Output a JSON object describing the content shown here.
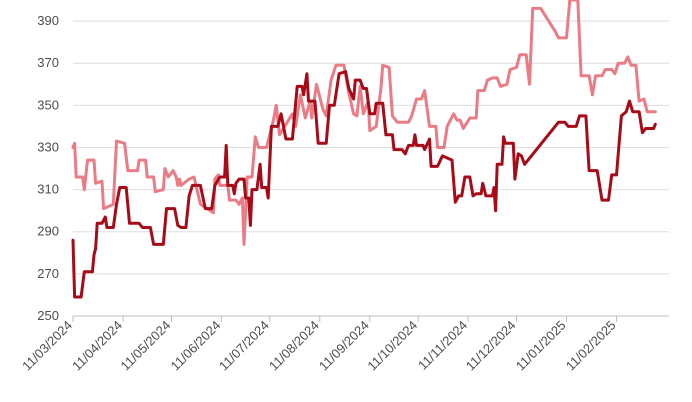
{
  "chart_data": {
    "type": "line",
    "title": "",
    "xlabel": "",
    "ylabel": "",
    "x_range": [
      "2024-03-11",
      "2025-03-01"
    ],
    "ylim": [
      250,
      400
    ],
    "yticks": [
      250,
      270,
      290,
      310,
      330,
      350,
      370,
      390
    ],
    "xticks": [
      "11/03/2024",
      "11/04/2024",
      "11/05/2024",
      "11/06/2024",
      "11/07/2024",
      "11/08/2024",
      "11/09/2024",
      "11/10/2024",
      "11/11/2024",
      "11/12/2024",
      "11/01/2025",
      "11/02/2025"
    ],
    "grid": "horizontal",
    "legend": "none",
    "series": [
      {
        "color": "#eb7b85",
        "points": [
          [
            "2024-03-11",
            330
          ],
          [
            "2024-03-12",
            332
          ],
          [
            "2024-03-13",
            316
          ],
          [
            "2024-03-17",
            316
          ],
          [
            "2024-03-18",
            310
          ],
          [
            "2024-03-20",
            324
          ],
          [
            "2024-03-24",
            324
          ],
          [
            "2024-03-25",
            313
          ],
          [
            "2024-03-29",
            314
          ],
          [
            "2024-03-30",
            301
          ],
          [
            "2024-04-05",
            303
          ],
          [
            "2024-04-07",
            333
          ],
          [
            "2024-04-12",
            332
          ],
          [
            "2024-04-14",
            319
          ],
          [
            "2024-04-20",
            319
          ],
          [
            "2024-04-21",
            324
          ],
          [
            "2024-04-25",
            324
          ],
          [
            "2024-04-26",
            316
          ],
          [
            "2024-04-30",
            316
          ],
          [
            "2024-05-01",
            309
          ],
          [
            "2024-05-06",
            310
          ],
          [
            "2024-05-07",
            320
          ],
          [
            "2024-05-09",
            316
          ],
          [
            "2024-05-12",
            319
          ],
          [
            "2024-05-14",
            316
          ],
          [
            "2024-05-15",
            312
          ],
          [
            "2024-05-16",
            315
          ],
          [
            "2024-05-17",
            312
          ],
          [
            "2024-05-22",
            315
          ],
          [
            "2024-05-25",
            316
          ],
          [
            "2024-05-29",
            303
          ],
          [
            "2024-06-06",
            299
          ],
          [
            "2024-06-07",
            315
          ],
          [
            "2024-06-09",
            317
          ],
          [
            "2024-06-10",
            312
          ],
          [
            "2024-06-15",
            312
          ],
          [
            "2024-06-16",
            305
          ],
          [
            "2024-06-20",
            305
          ],
          [
            "2024-06-22",
            303
          ],
          [
            "2024-06-24",
            306
          ],
          [
            "2024-06-25",
            284
          ],
          [
            "2024-06-27",
            316
          ],
          [
            "2024-06-30",
            316
          ],
          [
            "2024-07-02",
            335
          ],
          [
            "2024-07-04",
            330
          ],
          [
            "2024-07-09",
            330
          ],
          [
            "2024-07-13",
            342
          ],
          [
            "2024-07-15",
            350
          ],
          [
            "2024-07-17",
            336
          ],
          [
            "2024-07-25",
            346
          ],
          [
            "2024-07-27",
            340
          ],
          [
            "2024-07-30",
            355
          ],
          [
            "2024-08-02",
            344
          ],
          [
            "2024-08-05",
            352
          ],
          [
            "2024-08-06",
            344
          ],
          [
            "2024-08-09",
            360
          ],
          [
            "2024-08-13",
            348
          ],
          [
            "2024-08-15",
            345
          ],
          [
            "2024-08-18",
            362
          ],
          [
            "2024-08-21",
            369
          ],
          [
            "2024-08-26",
            369
          ],
          [
            "2024-08-29",
            356
          ],
          [
            "2024-09-01",
            346
          ],
          [
            "2024-09-03",
            345
          ],
          [
            "2024-09-05",
            359
          ],
          [
            "2024-09-07",
            346
          ],
          [
            "2024-09-10",
            352
          ],
          [
            "2024-09-11",
            338
          ],
          [
            "2024-09-15",
            340
          ],
          [
            "2024-09-18",
            359
          ],
          [
            "2024-09-19",
            369
          ],
          [
            "2024-09-23",
            368
          ],
          [
            "2024-09-25",
            345
          ],
          [
            "2024-09-28",
            342
          ],
          [
            "2024-10-05",
            342
          ],
          [
            "2024-10-07",
            345
          ],
          [
            "2024-10-10",
            353
          ],
          [
            "2024-10-13",
            353
          ],
          [
            "2024-10-15",
            357
          ],
          [
            "2024-10-18",
            340
          ],
          [
            "2024-10-22",
            340
          ],
          [
            "2024-10-23",
            330
          ],
          [
            "2024-10-27",
            330
          ],
          [
            "2024-10-29",
            340
          ],
          [
            "2024-11-02",
            346
          ],
          [
            "2024-11-04",
            343
          ],
          [
            "2024-11-06",
            343
          ],
          [
            "2024-11-08",
            339
          ],
          [
            "2024-11-12",
            344
          ],
          [
            "2024-11-16",
            344
          ],
          [
            "2024-11-17",
            357
          ],
          [
            "2024-11-21",
            357
          ],
          [
            "2024-11-23",
            362
          ],
          [
            "2024-11-26",
            363
          ],
          [
            "2024-11-29",
            363
          ],
          [
            "2024-12-01",
            359
          ],
          [
            "2024-12-05",
            360
          ],
          [
            "2024-12-07",
            367
          ],
          [
            "2024-12-11",
            368
          ],
          [
            "2024-12-13",
            374
          ],
          [
            "2024-12-17",
            374
          ],
          [
            "2024-12-19",
            360
          ],
          [
            "2024-12-21",
            396
          ],
          [
            "2024-12-26",
            396
          ],
          [
            "2025-01-04",
            385
          ],
          [
            "2025-01-06",
            382
          ],
          [
            "2025-01-11",
            382
          ],
          [
            "2025-01-13",
            400
          ],
          [
            "2025-01-18",
            400
          ],
          [
            "2025-01-20",
            364
          ],
          [
            "2025-01-25",
            364
          ],
          [
            "2025-01-27",
            355
          ],
          [
            "2025-01-29",
            364
          ],
          [
            "2025-02-02",
            364
          ],
          [
            "2025-02-04",
            367
          ],
          [
            "2025-02-08",
            367
          ],
          [
            "2025-02-10",
            365
          ],
          [
            "2025-02-12",
            370
          ],
          [
            "2025-02-16",
            370
          ],
          [
            "2025-02-18",
            373
          ],
          [
            "2025-02-20",
            369
          ],
          [
            "2025-02-23",
            369
          ],
          [
            "2025-02-25",
            352
          ],
          [
            "2025-02-28",
            353
          ],
          [
            "2025-03-02",
            347
          ],
          [
            "2025-03-07",
            347
          ]
        ]
      },
      {
        "color": "#a80b17",
        "points": [
          [
            "2024-03-11",
            286
          ],
          [
            "2024-03-12",
            259
          ],
          [
            "2024-03-16",
            259
          ],
          [
            "2024-03-18",
            271
          ],
          [
            "2024-03-23",
            271
          ],
          [
            "2024-03-24",
            279
          ],
          [
            "2024-03-25",
            282
          ],
          [
            "2024-03-26",
            294
          ],
          [
            "2024-03-29",
            294
          ],
          [
            "2024-03-31",
            297
          ],
          [
            "2024-04-01",
            292
          ],
          [
            "2024-04-05",
            292
          ],
          [
            "2024-04-07",
            303
          ],
          [
            "2024-04-09",
            311
          ],
          [
            "2024-04-13",
            311
          ],
          [
            "2024-04-15",
            294
          ],
          [
            "2024-04-21",
            294
          ],
          [
            "2024-04-23",
            292
          ],
          [
            "2024-04-28",
            292
          ],
          [
            "2024-04-30",
            284
          ],
          [
            "2024-05-06",
            284
          ],
          [
            "2024-05-08",
            301
          ],
          [
            "2024-05-13",
            301
          ],
          [
            "2024-05-15",
            293
          ],
          [
            "2024-05-17",
            292
          ],
          [
            "2024-05-20",
            292
          ],
          [
            "2024-05-22",
            307
          ],
          [
            "2024-05-24",
            312
          ],
          [
            "2024-05-29",
            312
          ],
          [
            "2024-06-01",
            301
          ],
          [
            "2024-06-05",
            301
          ],
          [
            "2024-06-07",
            312
          ],
          [
            "2024-06-10",
            316
          ],
          [
            "2024-06-13",
            316
          ],
          [
            "2024-06-14",
            331
          ],
          [
            "2024-06-15",
            312
          ],
          [
            "2024-06-18",
            312
          ],
          [
            "2024-06-19",
            308
          ],
          [
            "2024-06-20",
            313
          ],
          [
            "2024-06-22",
            315
          ],
          [
            "2024-06-25",
            315
          ],
          [
            "2024-06-26",
            306
          ],
          [
            "2024-06-28",
            306
          ],
          [
            "2024-06-29",
            293
          ],
          [
            "2024-06-30",
            310
          ],
          [
            "2024-07-03",
            310
          ],
          [
            "2024-07-05",
            322
          ],
          [
            "2024-07-06",
            311
          ],
          [
            "2024-07-09",
            311
          ],
          [
            "2024-07-10",
            306
          ],
          [
            "2024-07-12",
            340
          ],
          [
            "2024-07-16",
            340
          ],
          [
            "2024-07-18",
            346
          ],
          [
            "2024-07-21",
            334
          ],
          [
            "2024-07-25",
            334
          ],
          [
            "2024-07-28",
            359
          ],
          [
            "2024-07-31",
            359
          ],
          [
            "2024-08-01",
            355
          ],
          [
            "2024-08-03",
            365
          ],
          [
            "2024-08-04",
            352
          ],
          [
            "2024-08-08",
            352
          ],
          [
            "2024-08-10",
            332
          ],
          [
            "2024-08-15",
            332
          ],
          [
            "2024-08-17",
            350
          ],
          [
            "2024-08-20",
            350
          ],
          [
            "2024-08-23",
            365
          ],
          [
            "2024-08-27",
            366
          ],
          [
            "2024-08-29",
            358
          ],
          [
            "2024-09-01",
            353
          ],
          [
            "2024-09-02",
            362
          ],
          [
            "2024-09-05",
            362
          ],
          [
            "2024-09-07",
            358
          ],
          [
            "2024-09-09",
            358
          ],
          [
            "2024-09-11",
            346
          ],
          [
            "2024-09-14",
            346
          ],
          [
            "2024-09-15",
            351
          ],
          [
            "2024-09-19",
            351
          ],
          [
            "2024-09-21",
            336
          ],
          [
            "2024-09-25",
            336
          ],
          [
            "2024-09-26",
            329
          ],
          [
            "2024-10-01",
            329
          ],
          [
            "2024-10-03",
            327
          ],
          [
            "2024-10-05",
            331
          ],
          [
            "2024-10-08",
            331
          ],
          [
            "2024-10-09",
            336
          ],
          [
            "2024-10-10",
            331
          ],
          [
            "2024-10-14",
            331
          ],
          [
            "2024-10-15",
            329
          ],
          [
            "2024-10-18",
            334
          ],
          [
            "2024-10-19",
            321
          ],
          [
            "2024-10-23",
            321
          ],
          [
            "2024-10-26",
            326
          ],
          [
            "2024-11-01",
            324
          ],
          [
            "2024-11-03",
            304
          ],
          [
            "2024-11-05",
            307
          ],
          [
            "2024-11-07",
            307
          ],
          [
            "2024-11-09",
            316
          ],
          [
            "2024-11-12",
            316
          ],
          [
            "2024-11-14",
            307
          ],
          [
            "2024-11-16",
            308
          ],
          [
            "2024-11-19",
            308
          ],
          [
            "2024-11-20",
            313
          ],
          [
            "2024-11-22",
            307
          ],
          [
            "2024-11-26",
            307
          ],
          [
            "2024-11-27",
            311
          ],
          [
            "2024-11-28",
            300
          ],
          [
            "2024-11-29",
            322
          ],
          [
            "2024-12-02",
            322
          ],
          [
            "2024-12-03",
            335
          ],
          [
            "2024-12-04",
            332
          ],
          [
            "2024-12-09",
            332
          ],
          [
            "2024-12-10",
            315
          ],
          [
            "2024-12-12",
            327
          ],
          [
            "2024-12-14",
            326
          ],
          [
            "2024-12-16",
            322
          ],
          [
            "2025-01-06",
            342
          ],
          [
            "2025-01-10",
            342
          ],
          [
            "2025-01-12",
            340
          ],
          [
            "2025-01-17",
            340
          ],
          [
            "2025-01-19",
            345
          ],
          [
            "2025-01-23",
            345
          ],
          [
            "2025-01-25",
            319
          ],
          [
            "2025-01-30",
            319
          ],
          [
            "2025-02-02",
            305
          ],
          [
            "2025-02-06",
            305
          ],
          [
            "2025-02-08",
            317
          ],
          [
            "2025-02-11",
            317
          ],
          [
            "2025-02-14",
            345
          ],
          [
            "2025-02-17",
            347
          ],
          [
            "2025-02-19",
            352
          ],
          [
            "2025-02-21",
            347
          ],
          [
            "2025-02-25",
            347
          ],
          [
            "2025-02-27",
            337
          ],
          [
            "2025-03-01",
            339
          ],
          [
            "2025-03-06",
            339
          ],
          [
            "2025-03-07",
            341
          ]
        ]
      }
    ]
  }
}
